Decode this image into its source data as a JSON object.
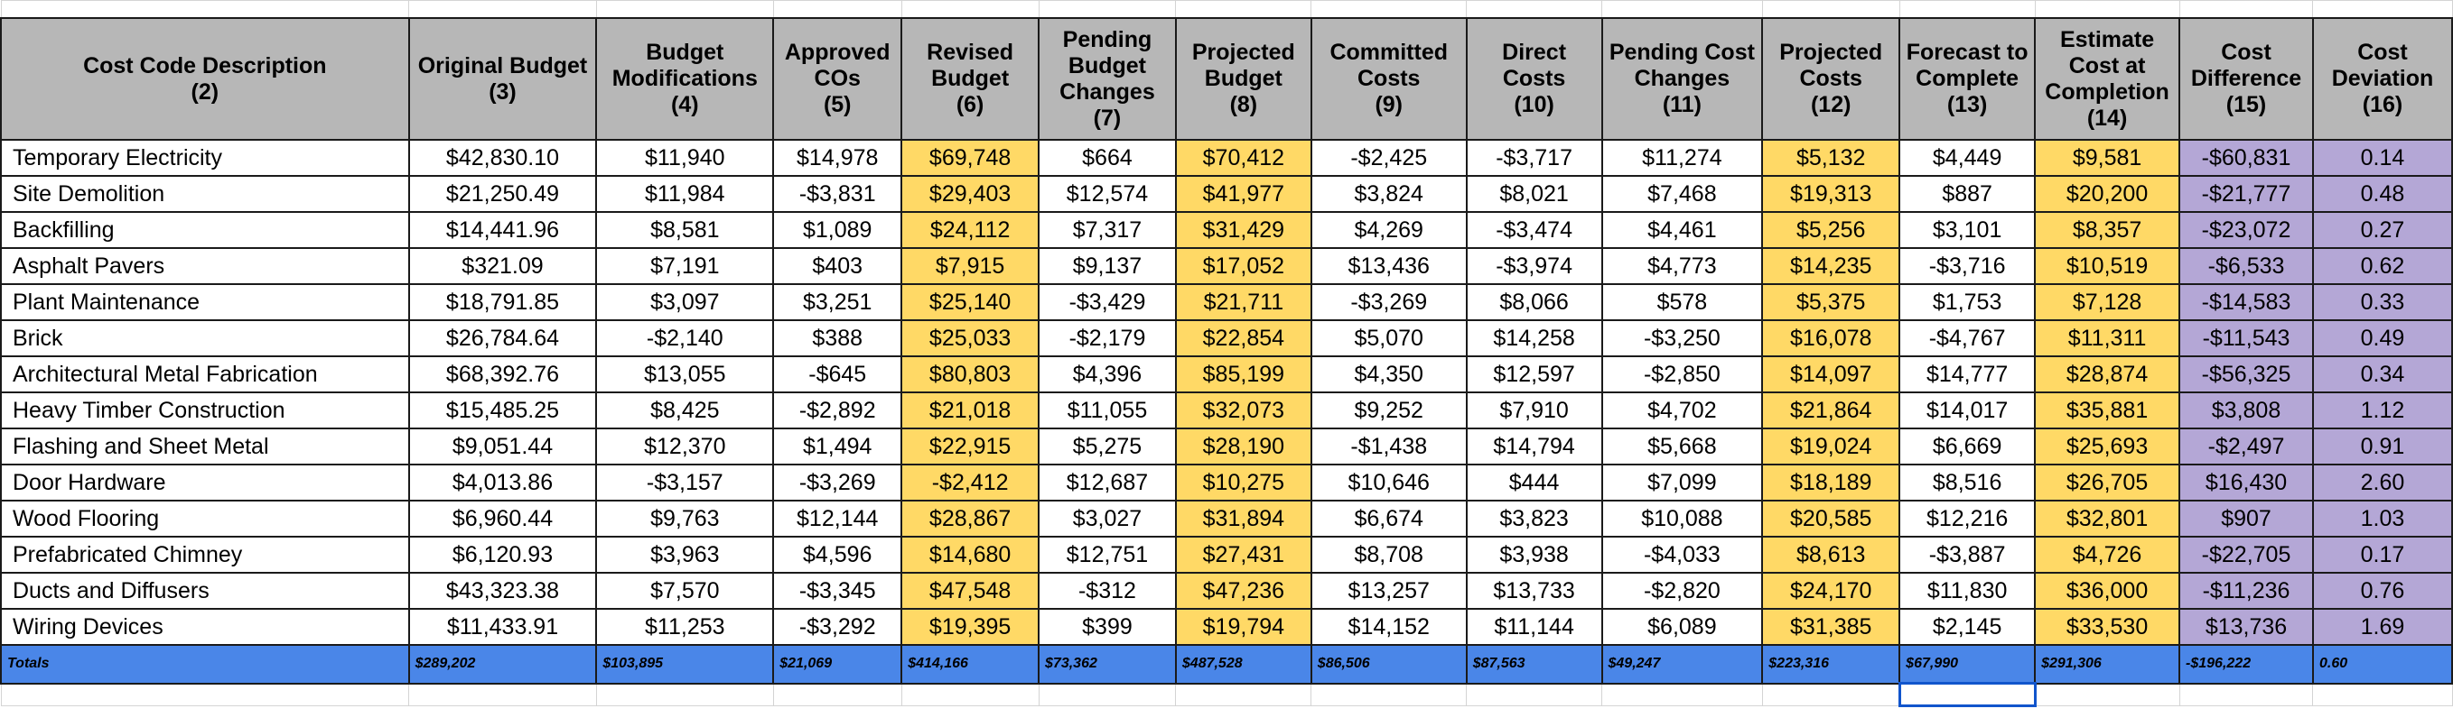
{
  "columns": [
    {
      "line1": "Cost Code Description",
      "line2": "(2)"
    },
    {
      "line1": "Original Budget",
      "line2": "(3)"
    },
    {
      "line1": "Budget Modifications",
      "line2": "(4)"
    },
    {
      "line1": "Approved COs",
      "line2": "(5)"
    },
    {
      "line1": "Revised Budget",
      "line2": "(6)"
    },
    {
      "line1": "Pending Budget Changes",
      "line2": "(7)"
    },
    {
      "line1": "Projected Budget",
      "line2": "(8)"
    },
    {
      "line1": "Committed Costs",
      "line2": "(9)"
    },
    {
      "line1": "Direct Costs",
      "line2": "(10)"
    },
    {
      "line1": "Pending Cost Changes",
      "line2": "(11)"
    },
    {
      "line1": "Projected Costs",
      "line2": "(12)"
    },
    {
      "line1": "Forecast to Complete",
      "line2": "(13)"
    },
    {
      "line1": "Estimate Cost at Completion",
      "line2": "(14)"
    },
    {
      "line1": "Cost Difference",
      "line2": "(15)"
    },
    {
      "line1": "Cost Deviation",
      "line2": "(16)"
    }
  ],
  "rows": [
    [
      "Temporary Electricity",
      "$42,830.10",
      "$11,940",
      "$14,978",
      "$69,748",
      "$664",
      "$70,412",
      "-$2,425",
      "-$3,717",
      "$11,274",
      "$5,132",
      "$4,449",
      "$9,581",
      "-$60,831",
      "0.14"
    ],
    [
      "Site Demolition",
      "$21,250.49",
      "$11,984",
      "-$3,831",
      "$29,403",
      "$12,574",
      "$41,977",
      "$3,824",
      "$8,021",
      "$7,468",
      "$19,313",
      "$887",
      "$20,200",
      "-$21,777",
      "0.48"
    ],
    [
      "Backfilling",
      "$14,441.96",
      "$8,581",
      "$1,089",
      "$24,112",
      "$7,317",
      "$31,429",
      "$4,269",
      "-$3,474",
      "$4,461",
      "$5,256",
      "$3,101",
      "$8,357",
      "-$23,072",
      "0.27"
    ],
    [
      "Asphalt Pavers",
      "$321.09",
      "$7,191",
      "$403",
      "$7,915",
      "$9,137",
      "$17,052",
      "$13,436",
      "-$3,974",
      "$4,773",
      "$14,235",
      "-$3,716",
      "$10,519",
      "-$6,533",
      "0.62"
    ],
    [
      "Plant Maintenance",
      "$18,791.85",
      "$3,097",
      "$3,251",
      "$25,140",
      "-$3,429",
      "$21,711",
      "-$3,269",
      "$8,066",
      "$578",
      "$5,375",
      "$1,753",
      "$7,128",
      "-$14,583",
      "0.33"
    ],
    [
      "Brick",
      "$26,784.64",
      "-$2,140",
      "$388",
      "$25,033",
      "-$2,179",
      "$22,854",
      "$5,070",
      "$14,258",
      "-$3,250",
      "$16,078",
      "-$4,767",
      "$11,311",
      "-$11,543",
      "0.49"
    ],
    [
      "Architectural Metal Fabrication",
      "$68,392.76",
      "$13,055",
      "-$645",
      "$80,803",
      "$4,396",
      "$85,199",
      "$4,350",
      "$12,597",
      "-$2,850",
      "$14,097",
      "$14,777",
      "$28,874",
      "-$56,325",
      "0.34"
    ],
    [
      "Heavy Timber Construction",
      "$15,485.25",
      "$8,425",
      "-$2,892",
      "$21,018",
      "$11,055",
      "$32,073",
      "$9,252",
      "$7,910",
      "$4,702",
      "$21,864",
      "$14,017",
      "$35,881",
      "$3,808",
      "1.12"
    ],
    [
      "Flashing and Sheet Metal",
      "$9,051.44",
      "$12,370",
      "$1,494",
      "$22,915",
      "$5,275",
      "$28,190",
      "-$1,438",
      "$14,794",
      "$5,668",
      "$19,024",
      "$6,669",
      "$25,693",
      "-$2,497",
      "0.91"
    ],
    [
      "Door Hardware",
      "$4,013.86",
      "-$3,157",
      "-$3,269",
      "-$2,412",
      "$12,687",
      "$10,275",
      "$10,646",
      "$444",
      "$7,099",
      "$18,189",
      "$8,516",
      "$26,705",
      "$16,430",
      "2.60"
    ],
    [
      "Wood Flooring",
      "$6,960.44",
      "$9,763",
      "$12,144",
      "$28,867",
      "$3,027",
      "$31,894",
      "$6,674",
      "$3,823",
      "$10,088",
      "$20,585",
      "$12,216",
      "$32,801",
      "$907",
      "1.03"
    ],
    [
      "Prefabricated Chimney",
      "$6,120.93",
      "$3,963",
      "$4,596",
      "$14,680",
      "$12,751",
      "$27,431",
      "$8,708",
      "$3,938",
      "-$4,033",
      "$8,613",
      "-$3,887",
      "$4,726",
      "-$22,705",
      "0.17"
    ],
    [
      "Ducts and Diffusers",
      "$43,323.38",
      "$7,570",
      "-$3,345",
      "$47,548",
      "-$312",
      "$47,236",
      "$13,257",
      "$13,733",
      "-$2,820",
      "$24,170",
      "$11,830",
      "$36,000",
      "-$11,236",
      "0.76"
    ],
    [
      "Wiring Devices",
      "$11,433.91",
      "$11,253",
      "-$3,292",
      "$19,395",
      "$399",
      "$19,794",
      "$14,152",
      "$11,144",
      "$6,089",
      "$31,385",
      "$2,145",
      "$33,530",
      "$13,736",
      "1.69"
    ]
  ],
  "totals": [
    "Totals",
    "$289,202",
    "$103,895",
    "$21,069",
    "$414,166",
    "$73,362",
    "$487,528",
    "$86,506",
    "$87,563",
    "$49,247",
    "$223,316",
    "$67,990",
    "$291,306",
    "-$196,222",
    "0.60"
  ],
  "highlight": {
    "yellow_columns": [
      4,
      6,
      10,
      12
    ],
    "purple_columns": [
      13,
      14
    ],
    "yellow": "#ffd966",
    "purple": "#b4a7d6",
    "header_gray": "#b7b7b7",
    "totals_blue": "#4a86e8",
    "selection_border": "#1155cc"
  }
}
